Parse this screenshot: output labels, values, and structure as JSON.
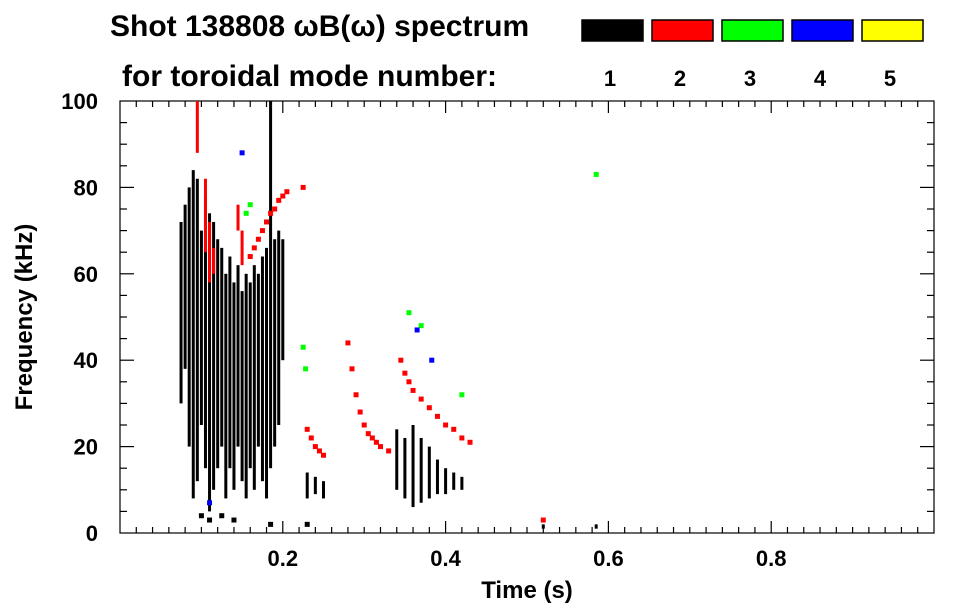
{
  "chart_data": {
    "type": "scatter",
    "title_line1": "Shot 138808 ωB(ω) spectrum",
    "title_line2": "for toroidal mode number:",
    "xlabel": "Time (s)",
    "ylabel": "Frequency (kHz)",
    "xlim": [
      0.0,
      1.0
    ],
    "ylim": [
      0,
      100
    ],
    "x_ticks": [
      0.2,
      0.4,
      0.6,
      0.8
    ],
    "x_tick_labels": [
      "0.2",
      "0.4",
      "0.6",
      "0.8"
    ],
    "y_ticks": [
      0,
      20,
      40,
      60,
      80,
      100
    ],
    "y_tick_labels": [
      "0",
      "20",
      "40",
      "60",
      "80",
      "100"
    ],
    "legend": [
      {
        "mode": "1",
        "color": "#000000"
      },
      {
        "mode": "2",
        "color": "#ff0000"
      },
      {
        "mode": "3",
        "color": "#00ff00"
      },
      {
        "mode": "4",
        "color": "#0000ff"
      },
      {
        "mode": "5",
        "color": "#ffff00"
      }
    ],
    "series": [
      {
        "name": "n=1",
        "color": "#000000",
        "bands": [
          {
            "x": 0.075,
            "y": [
              30,
              72
            ]
          },
          {
            "x": 0.08,
            "y": [
              38,
              76
            ]
          },
          {
            "x": 0.085,
            "y": [
              20,
              80
            ]
          },
          {
            "x": 0.09,
            "y": [
              8,
              84
            ]
          },
          {
            "x": 0.095,
            "y": [
              12,
              82
            ]
          },
          {
            "x": 0.1,
            "y": [
              25,
              70
            ]
          },
          {
            "x": 0.105,
            "y": [
              15,
              78
            ]
          },
          {
            "x": 0.11,
            "y": [
              5,
              74
            ]
          },
          {
            "x": 0.115,
            "y": [
              10,
              72
            ]
          },
          {
            "x": 0.12,
            "y": [
              15,
              68
            ]
          },
          {
            "x": 0.125,
            "y": [
              20,
              66
            ]
          },
          {
            "x": 0.13,
            "y": [
              8,
              60
            ]
          },
          {
            "x": 0.135,
            "y": [
              15,
              64
            ]
          },
          {
            "x": 0.14,
            "y": [
              10,
              58
            ]
          },
          {
            "x": 0.145,
            "y": [
              20,
              62
            ]
          },
          {
            "x": 0.15,
            "y": [
              12,
              56
            ]
          },
          {
            "x": 0.155,
            "y": [
              8,
              60
            ]
          },
          {
            "x": 0.16,
            "y": [
              15,
              58
            ]
          },
          {
            "x": 0.165,
            "y": [
              10,
              62
            ]
          },
          {
            "x": 0.17,
            "y": [
              20,
              60
            ]
          },
          {
            "x": 0.175,
            "y": [
              12,
              64
            ]
          },
          {
            "x": 0.18,
            "y": [
              8,
              66
            ]
          },
          {
            "x": 0.185,
            "y": [
              15,
              100
            ]
          },
          {
            "x": 0.19,
            "y": [
              20,
              68
            ]
          },
          {
            "x": 0.195,
            "y": [
              25,
              70
            ]
          },
          {
            "x": 0.2,
            "y": [
              40,
              68
            ]
          },
          {
            "x": 0.23,
            "y": [
              8,
              14
            ]
          },
          {
            "x": 0.24,
            "y": [
              9,
              13
            ]
          },
          {
            "x": 0.25,
            "y": [
              8,
              12
            ]
          },
          {
            "x": 0.34,
            "y": [
              10,
              24
            ]
          },
          {
            "x": 0.35,
            "y": [
              8,
              22
            ]
          },
          {
            "x": 0.36,
            "y": [
              6,
              25
            ]
          },
          {
            "x": 0.37,
            "y": [
              7,
              22
            ]
          },
          {
            "x": 0.38,
            "y": [
              8,
              20
            ]
          },
          {
            "x": 0.39,
            "y": [
              9,
              17
            ]
          },
          {
            "x": 0.4,
            "y": [
              9,
              15
            ]
          },
          {
            "x": 0.41,
            "y": [
              10,
              14
            ]
          },
          {
            "x": 0.42,
            "y": [
              10,
              13
            ]
          },
          {
            "x": 0.52,
            "y": [
              1,
              2
            ]
          },
          {
            "x": 0.585,
            "y": [
              1,
              2
            ]
          }
        ],
        "points": [
          {
            "x": 0.1,
            "y": 4
          },
          {
            "x": 0.11,
            "y": 3
          },
          {
            "x": 0.125,
            "y": 4
          },
          {
            "x": 0.14,
            "y": 3
          },
          {
            "x": 0.185,
            "y": 2
          },
          {
            "x": 0.23,
            "y": 2
          }
        ]
      },
      {
        "name": "n=2",
        "color": "#ff0000",
        "bands": [
          {
            "x": 0.095,
            "y": [
              88,
              100
            ]
          },
          {
            "x": 0.105,
            "y": [
              65,
              82
            ]
          },
          {
            "x": 0.11,
            "y": [
              58,
              72
            ]
          },
          {
            "x": 0.115,
            "y": [
              60,
              66
            ]
          },
          {
            "x": 0.145,
            "y": [
              70,
              76
            ]
          },
          {
            "x": 0.15,
            "y": [
              62,
              70
            ]
          }
        ],
        "points": [
          {
            "x": 0.16,
            "y": 64
          },
          {
            "x": 0.165,
            "y": 66
          },
          {
            "x": 0.17,
            "y": 68
          },
          {
            "x": 0.175,
            "y": 70
          },
          {
            "x": 0.18,
            "y": 72
          },
          {
            "x": 0.185,
            "y": 74
          },
          {
            "x": 0.19,
            "y": 75
          },
          {
            "x": 0.195,
            "y": 77
          },
          {
            "x": 0.2,
            "y": 78
          },
          {
            "x": 0.205,
            "y": 79
          },
          {
            "x": 0.225,
            "y": 80
          },
          {
            "x": 0.23,
            "y": 24
          },
          {
            "x": 0.235,
            "y": 22
          },
          {
            "x": 0.24,
            "y": 20
          },
          {
            "x": 0.245,
            "y": 19
          },
          {
            "x": 0.25,
            "y": 18
          },
          {
            "x": 0.28,
            "y": 44
          },
          {
            "x": 0.285,
            "y": 38
          },
          {
            "x": 0.29,
            "y": 32
          },
          {
            "x": 0.295,
            "y": 28
          },
          {
            "x": 0.3,
            "y": 25
          },
          {
            "x": 0.305,
            "y": 23
          },
          {
            "x": 0.31,
            "y": 22
          },
          {
            "x": 0.315,
            "y": 21
          },
          {
            "x": 0.32,
            "y": 20
          },
          {
            "x": 0.33,
            "y": 19
          },
          {
            "x": 0.345,
            "y": 40
          },
          {
            "x": 0.35,
            "y": 37
          },
          {
            "x": 0.355,
            "y": 35
          },
          {
            "x": 0.36,
            "y": 33
          },
          {
            "x": 0.37,
            "y": 31
          },
          {
            "x": 0.38,
            "y": 29
          },
          {
            "x": 0.39,
            "y": 27
          },
          {
            "x": 0.4,
            "y": 25
          },
          {
            "x": 0.41,
            "y": 24
          },
          {
            "x": 0.42,
            "y": 22
          },
          {
            "x": 0.43,
            "y": 21
          },
          {
            "x": 0.52,
            "y": 3
          }
        ]
      },
      {
        "name": "n=3",
        "color": "#00ff00",
        "points": [
          {
            "x": 0.155,
            "y": 74
          },
          {
            "x": 0.16,
            "y": 76
          },
          {
            "x": 0.225,
            "y": 43
          },
          {
            "x": 0.228,
            "y": 38
          },
          {
            "x": 0.355,
            "y": 51
          },
          {
            "x": 0.37,
            "y": 48
          },
          {
            "x": 0.42,
            "y": 32
          },
          {
            "x": 0.585,
            "y": 83
          }
        ]
      },
      {
        "name": "n=4",
        "color": "#0000ff",
        "points": [
          {
            "x": 0.15,
            "y": 88
          },
          {
            "x": 0.11,
            "y": 7
          },
          {
            "x": 0.365,
            "y": 47
          },
          {
            "x": 0.383,
            "y": 40
          }
        ]
      },
      {
        "name": "n=5",
        "color": "#ffff00",
        "points": []
      }
    ]
  }
}
